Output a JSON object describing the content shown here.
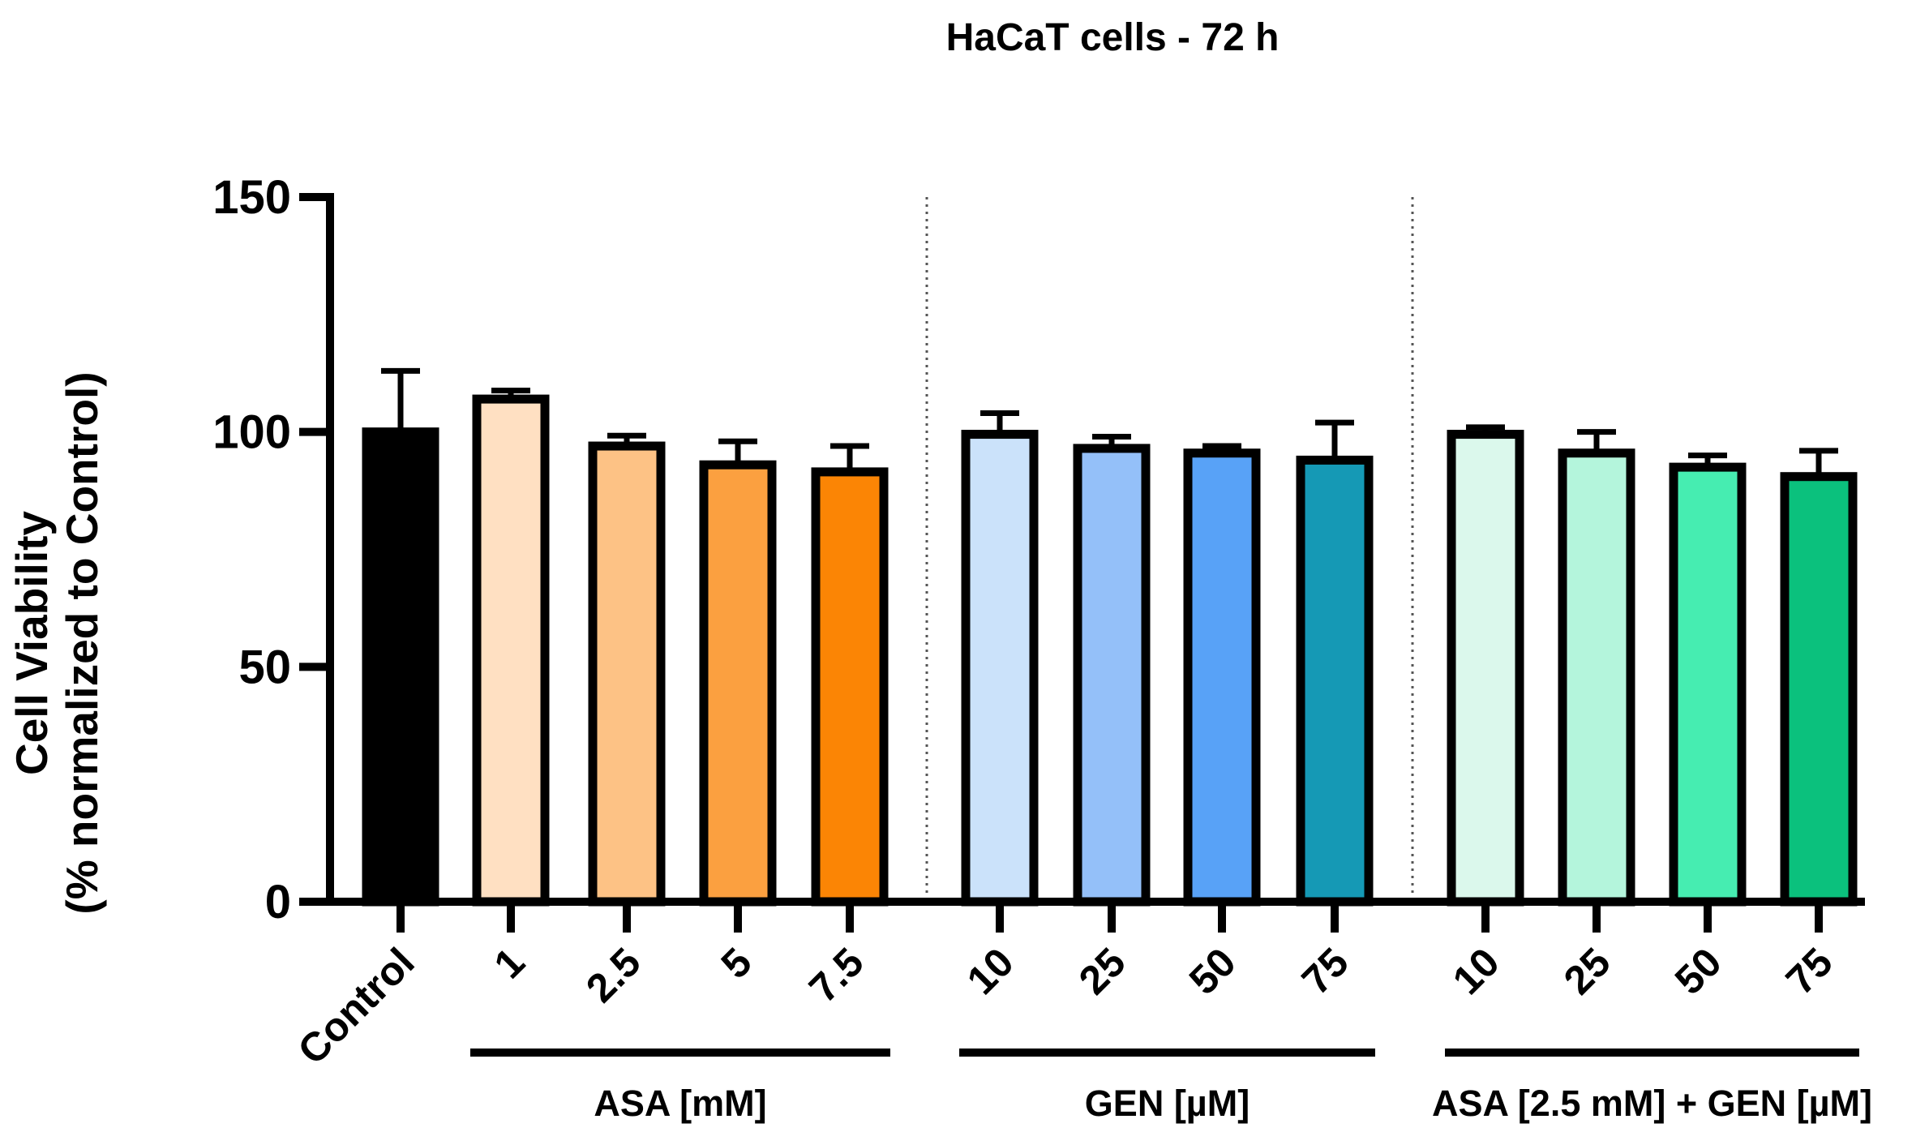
{
  "chart_data": {
    "type": "bar",
    "title": "HaCaT cells - 72 h",
    "ylabel_line1": "Cell Viability",
    "ylabel_line2": "(% normalized to Control)",
    "xlabel": "",
    "ylim": [
      0,
      150
    ],
    "yticks": [
      0,
      50,
      100,
      150
    ],
    "grid": false,
    "categories": [
      "Control",
      "1",
      "2.5",
      "5",
      "7.5",
      "10",
      "25",
      "50",
      "75",
      "10",
      "25",
      "50",
      "75"
    ],
    "values": [
      100,
      107,
      97,
      93,
      91.5,
      99.5,
      96.5,
      95.5,
      94,
      99.5,
      95.5,
      92.5,
      90.5
    ],
    "errors": [
      13,
      1.8,
      2.2,
      5,
      5.5,
      4.5,
      2.5,
      1.5,
      8,
      1.5,
      4.5,
      2.5,
      5.5
    ],
    "colors": [
      "#000000",
      "#FFE0C2",
      "#FDC285",
      "#FBA040",
      "#FB8505",
      "#CBE2FA",
      "#94C0F9",
      "#58A2F7",
      "#1599B5",
      "#DBF8EC",
      "#B4F5DC",
      "#46EDB1",
      "#0BC17D"
    ],
    "groups": [
      {
        "label": "ASA [mM]",
        "start": 1,
        "end": 4
      },
      {
        "label": "GEN [µM]",
        "start": 5,
        "end": 8
      },
      {
        "label": "ASA [2.5 mM] + GEN [µM]",
        "start": 9,
        "end": 12
      }
    ]
  }
}
